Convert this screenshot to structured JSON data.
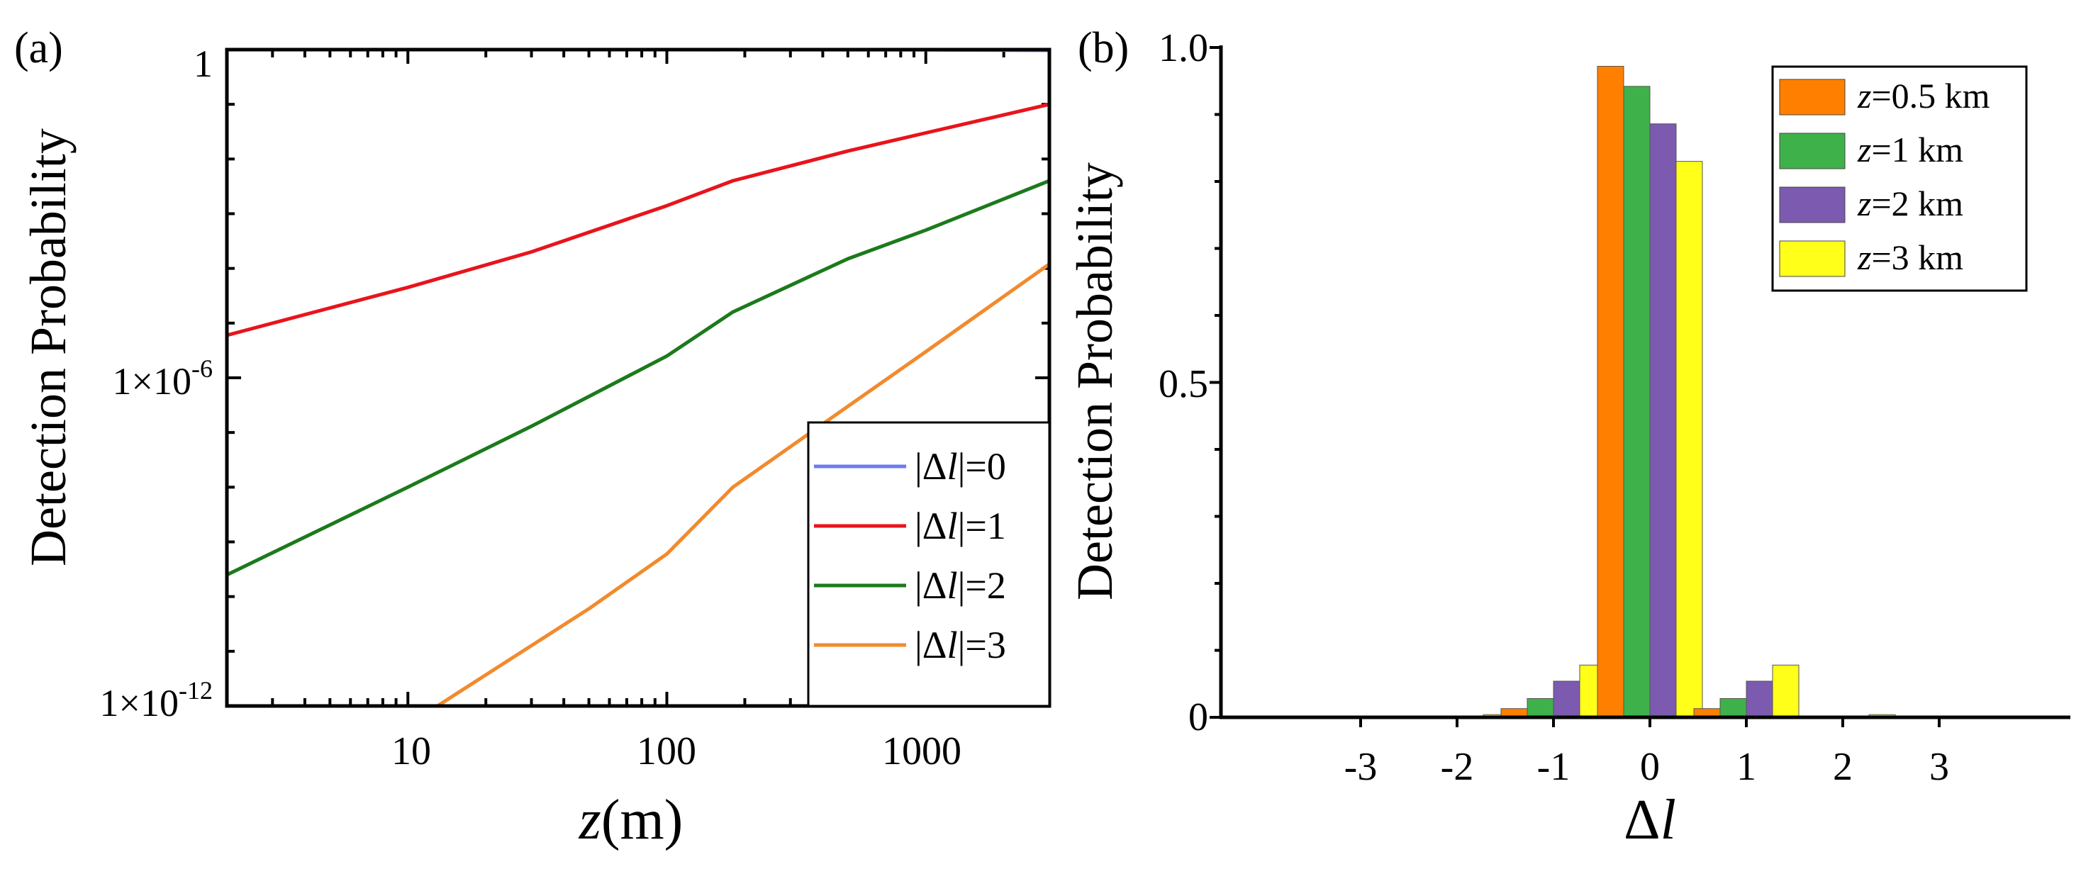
{
  "chart_data": [
    {
      "panel_label": "(a)",
      "type": "line",
      "xscale": "log",
      "yscale": "log",
      "xlabel_var": "z",
      "xlabel_unit": "(m)",
      "ylabel": "Detection Probability",
      "xlim": [
        2,
        3000
      ],
      "ylim": [
        1e-12,
        1
      ],
      "xticks": [
        {
          "value": 10,
          "label": "10"
        },
        {
          "value": 100,
          "label": "100"
        },
        {
          "value": 1000,
          "label": "1000"
        }
      ],
      "yticks": [
        {
          "value": 1,
          "base": "1",
          "exp": ""
        },
        {
          "value": 1e-06,
          "base": "1×10",
          "exp": "-6"
        },
        {
          "value": 1e-12,
          "base": "1×10",
          "exp": "-12"
        }
      ],
      "legend": {
        "position": "bottom-right"
      },
      "series": [
        {
          "name_prefix": "|Δ",
          "name_var": "l",
          "name_suffix": "|=0",
          "color": "#6b7cf2",
          "x": [
            2,
            10,
            100,
            1000,
            3000
          ],
          "y": [
            1.0,
            1.0,
            0.999,
            0.99,
            0.97
          ]
        },
        {
          "name_prefix": "|Δ",
          "name_var": "l",
          "name_suffix": "|=1",
          "color": "#e8141c",
          "x": [
            2,
            10,
            30,
            100,
            180,
            500,
            1000,
            3000
          ],
          "y": [
            6e-06,
            4.5e-05,
            0.0002,
            0.0014,
            0.004,
            0.014,
            0.03,
            0.1
          ]
        },
        {
          "name_prefix": "|Δ",
          "name_var": "l",
          "name_suffix": "|=2",
          "color": "#1c7a1c",
          "x": [
            2,
            10,
            30,
            100,
            180,
            500,
            1000,
            3000
          ],
          "y": [
            2.5e-10,
            1e-08,
            1.3e-07,
            2.5e-06,
            1.6e-05,
            0.00015,
            0.0005,
            0.004
          ]
        },
        {
          "name_prefix": "|Δ",
          "name_var": "l",
          "name_suffix": "|=3",
          "color": "#f28a2e",
          "x": [
            13,
            50,
            100,
            180,
            500,
            1000,
            3000
          ],
          "y": [
            1e-12,
            6e-11,
            6e-10,
            1e-08,
            3e-07,
            3e-06,
            0.00012
          ]
        }
      ]
    },
    {
      "panel_label": "(b)",
      "type": "bar",
      "xlabel_prefix": "Δ",
      "xlabel_var": "l",
      "ylabel": "Detection Probability",
      "categories": [
        "-3",
        "-2",
        "-1",
        "0",
        "1",
        "2",
        "3"
      ],
      "ylim": [
        0,
        1.0
      ],
      "yticks": [
        {
          "value": 0,
          "label": "0"
        },
        {
          "value": 0.5,
          "label": "0.5"
        },
        {
          "value": 1.0,
          "label": "1.0"
        }
      ],
      "legend": {
        "position": "top-right"
      },
      "series": [
        {
          "name_var": "z",
          "name_suffix": "=0.5 km",
          "color": "#ff8000",
          "values": [
            0,
            0.001,
            0.013,
            0.972,
            0.013,
            0.001,
            0
          ]
        },
        {
          "name_var": "z",
          "name_suffix": "=1 km",
          "color": "#3fb14a",
          "values": [
            0,
            0.001,
            0.028,
            0.942,
            0.028,
            0.001,
            0
          ]
        },
        {
          "name_var": "z",
          "name_suffix": "=2 km",
          "color": "#7b5ab0",
          "values": [
            0,
            0.002,
            0.054,
            0.886,
            0.054,
            0.002,
            0
          ]
        },
        {
          "name_var": "z",
          "name_suffix": "=3 km",
          "color": "#ffff1a",
          "values": [
            0,
            0.004,
            0.078,
            0.83,
            0.078,
            0.004,
            0
          ]
        }
      ]
    }
  ]
}
